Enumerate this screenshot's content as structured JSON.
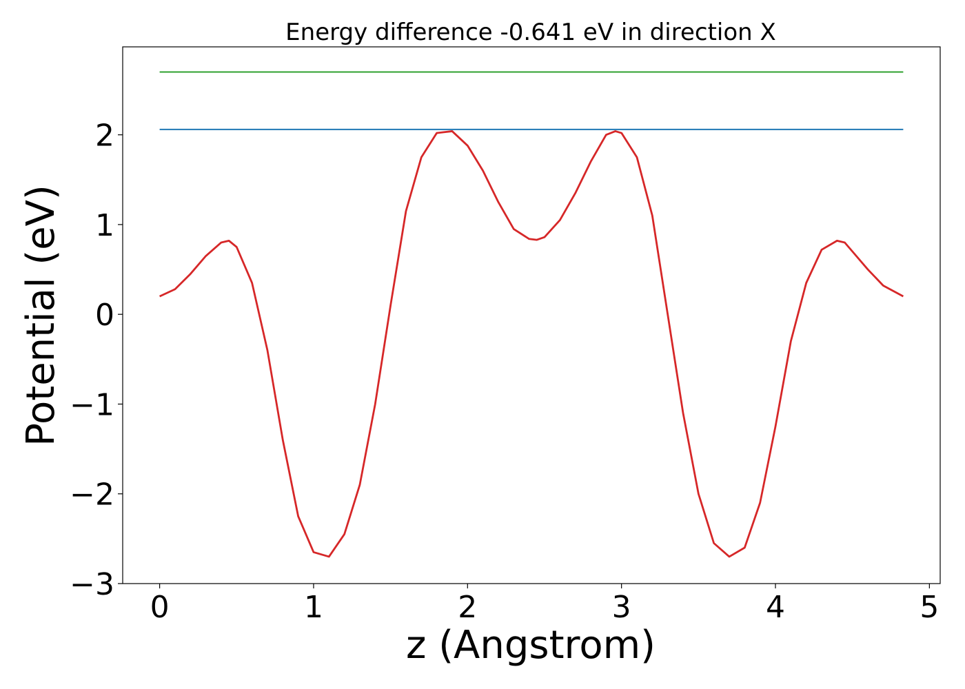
{
  "chart_data": {
    "type": "line",
    "title": "Energy difference -0.641 eV in direction X",
    "xlabel": "z (Angstrom)",
    "ylabel": "Potential (eV)",
    "xlim": [
      -0.24,
      5.07
    ],
    "ylim": [
      -3.0,
      2.98
    ],
    "xticks": [
      0,
      1,
      2,
      3,
      4,
      5
    ],
    "xtick_labels": [
      "0",
      "1",
      "2",
      "3",
      "4",
      "5"
    ],
    "yticks": [
      -3,
      -2,
      -1,
      0,
      1,
      2
    ],
    "ytick_labels": [
      "−3",
      "−2",
      "−1",
      "0",
      "1",
      "2"
    ],
    "grid": false,
    "legend": "none",
    "series": [
      {
        "color": "#d62728",
        "x": [
          0.0,
          0.1,
          0.2,
          0.3,
          0.4,
          0.45,
          0.5,
          0.6,
          0.7,
          0.8,
          0.9,
          1.0,
          1.1,
          1.2,
          1.3,
          1.4,
          1.5,
          1.6,
          1.7,
          1.8,
          1.9,
          2.0,
          2.1,
          2.2,
          2.3,
          2.4,
          2.45,
          2.5,
          2.6,
          2.7,
          2.8,
          2.9,
          2.96,
          3.0,
          3.1,
          3.2,
          3.3,
          3.4,
          3.5,
          3.6,
          3.7,
          3.8,
          3.9,
          4.0,
          4.1,
          4.2,
          4.3,
          4.4,
          4.45,
          4.5,
          4.6,
          4.7,
          4.83
        ],
        "y": [
          0.2,
          0.28,
          0.45,
          0.65,
          0.8,
          0.82,
          0.75,
          0.35,
          -0.4,
          -1.4,
          -2.25,
          -2.65,
          -2.7,
          -2.45,
          -1.9,
          -1.0,
          0.1,
          1.15,
          1.75,
          2.02,
          2.04,
          1.88,
          1.6,
          1.25,
          0.95,
          0.84,
          0.83,
          0.86,
          1.05,
          1.35,
          1.7,
          2.0,
          2.04,
          2.02,
          1.75,
          1.1,
          0.0,
          -1.1,
          -2.0,
          -2.55,
          -2.7,
          -2.6,
          -2.1,
          -1.25,
          -0.3,
          0.35,
          0.72,
          0.82,
          0.8,
          0.7,
          0.5,
          0.32,
          0.2
        ]
      },
      {
        "color": "#1f77b4",
        "x": [
          0.0,
          4.83
        ],
        "y": [
          2.06,
          2.06
        ]
      },
      {
        "color": "#2ca02c",
        "x": [
          0.0,
          4.83
        ],
        "y": [
          2.7,
          2.7
        ]
      }
    ]
  }
}
